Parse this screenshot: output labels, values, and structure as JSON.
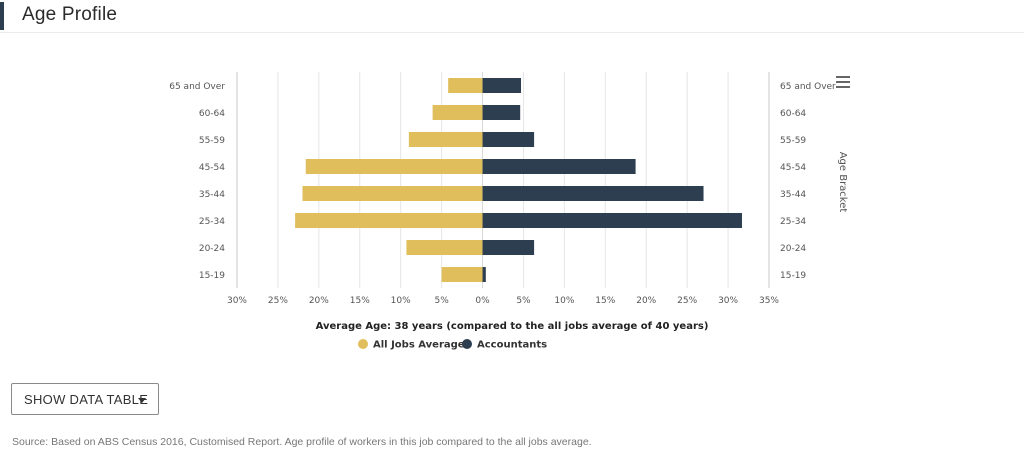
{
  "header": {
    "title": "Age Profile"
  },
  "chart_data": {
    "type": "bar",
    "orientation": "horizontal-diverging",
    "categories": [
      "65 and Over",
      "60-64",
      "55-59",
      "45-54",
      "35-44",
      "25-34",
      "20-24",
      "15-19"
    ],
    "series": [
      {
        "name": "All Jobs Average",
        "values": [
          4.2,
          6.1,
          9.0,
          21.6,
          22.0,
          22.9,
          9.3,
          5.0
        ],
        "color": "#dfbe5b",
        "side": "left"
      },
      {
        "name": "Accountants",
        "values": [
          4.7,
          4.6,
          6.3,
          18.7,
          27.0,
          31.7,
          6.3,
          0.4
        ],
        "color": "#2c3e50",
        "side": "right"
      }
    ],
    "xticks": [
      "30%",
      "25%",
      "20%",
      "15%",
      "10%",
      "5%",
      "0%",
      "5%",
      "10%",
      "15%",
      "20%",
      "25%",
      "30%",
      "35%"
    ],
    "xlim": [
      -30,
      35
    ],
    "right_axis_title": "Age Bracket",
    "subtitle_bold": "Average Age",
    "subtitle_rest": ": 38 years (compared to the all jobs average of 40 years)",
    "legend_position": "bottom-center",
    "grid": true
  },
  "controls": {
    "menu_icon": "hamburger-icon",
    "show_table_label": "SHOW DATA TABLE"
  },
  "source": "Source: Based on ABS Census 2016, Customised Report. Age profile of workers in this job compared to the all jobs average."
}
